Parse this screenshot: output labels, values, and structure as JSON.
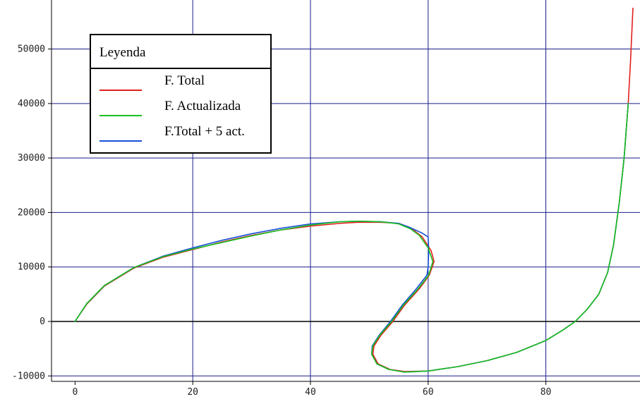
{
  "chart_data": {
    "type": "line",
    "title": "",
    "xlabel": "",
    "ylabel": "",
    "xlim": [
      -4,
      96
    ],
    "ylim": [
      -11000,
      59000
    ],
    "x_ticks": [
      0,
      20,
      40,
      60,
      80
    ],
    "x_tick_labels": [
      "0",
      "20",
      "40",
      "60",
      "80"
    ],
    "y_ticks": [
      -10000,
      0,
      10000,
      20000,
      30000,
      40000,
      50000
    ],
    "y_tick_labels": [
      "-10000",
      "0",
      "10000",
      "20000",
      "30000",
      "40000",
      "50000"
    ],
    "grid": true,
    "zero_line": true,
    "legend": {
      "title": "Leyenda",
      "placement": "top-left"
    },
    "series": [
      {
        "name": "F. Total",
        "color": "#e0201c",
        "points": [
          [
            0,
            0
          ],
          [
            2,
            3200
          ],
          [
            5,
            6500
          ],
          [
            10,
            9800
          ],
          [
            15,
            11800
          ],
          [
            20,
            13200
          ],
          [
            25,
            14600
          ],
          [
            30,
            15800
          ],
          [
            35,
            16800
          ],
          [
            40,
            17500
          ],
          [
            45,
            18000
          ],
          [
            48,
            18200
          ],
          [
            52,
            18200
          ],
          [
            55,
            18000
          ],
          [
            57,
            17200
          ],
          [
            59,
            15500
          ],
          [
            60.5,
            13000
          ],
          [
            61,
            11000
          ],
          [
            60.2,
            8500
          ],
          [
            58.5,
            6000
          ],
          [
            56,
            3000
          ],
          [
            54,
            0
          ],
          [
            52,
            -2500
          ],
          [
            50.8,
            -4500
          ],
          [
            50.6,
            -6000
          ],
          [
            51.5,
            -7800
          ],
          [
            53.5,
            -8800
          ],
          [
            56,
            -9200
          ],
          [
            60,
            -9100
          ],
          [
            65,
            -8300
          ],
          [
            70,
            -7200
          ],
          [
            75,
            -5700
          ],
          [
            80,
            -3500
          ],
          [
            83,
            -1500
          ],
          [
            85,
            0
          ],
          [
            87,
            2200
          ],
          [
            89,
            5000
          ],
          [
            90.5,
            9000
          ],
          [
            91.5,
            14000
          ],
          [
            92.5,
            22000
          ],
          [
            93.3,
            30000
          ],
          [
            94,
            40000
          ],
          [
            94.4,
            48000
          ],
          [
            94.8,
            57500
          ]
        ]
      },
      {
        "name": "F. Actualizada",
        "color": "#18c020",
        "points": [
          [
            0,
            0
          ],
          [
            2,
            3300
          ],
          [
            5,
            6600
          ],
          [
            10,
            9900
          ],
          [
            15,
            11900
          ],
          [
            20,
            13300
          ],
          [
            25,
            14500
          ],
          [
            30,
            15700
          ],
          [
            35,
            16800
          ],
          [
            40,
            17700
          ],
          [
            45,
            18300
          ],
          [
            48,
            18400
          ],
          [
            52,
            18300
          ],
          [
            55,
            17900
          ],
          [
            57,
            17000
          ],
          [
            58.5,
            15800
          ],
          [
            60,
            13500
          ],
          [
            60.8,
            11000
          ],
          [
            60.1,
            8500
          ],
          [
            58.3,
            6000
          ],
          [
            55.8,
            3000
          ],
          [
            53.8,
            0
          ],
          [
            51.8,
            -2500
          ],
          [
            50.6,
            -4500
          ],
          [
            50.4,
            -6000
          ],
          [
            51.3,
            -7800
          ],
          [
            53.3,
            -8800
          ],
          [
            56,
            -9300
          ],
          [
            60,
            -9100
          ],
          [
            65,
            -8300
          ],
          [
            70,
            -7200
          ],
          [
            75,
            -5700
          ],
          [
            80,
            -3500
          ],
          [
            83,
            -1500
          ],
          [
            85,
            0
          ],
          [
            87,
            2200
          ],
          [
            89,
            5000
          ],
          [
            90.5,
            9000
          ],
          [
            91.5,
            14000
          ],
          [
            92.5,
            22000
          ],
          [
            93.3,
            30000
          ],
          [
            94,
            40000
          ]
        ]
      },
      {
        "name": "F.Total + 5 act.",
        "color": "#1850d8",
        "points": [
          [
            0,
            0
          ],
          [
            2,
            3300
          ],
          [
            5,
            6600
          ],
          [
            10,
            9900
          ],
          [
            15,
            12000
          ],
          [
            20,
            13500
          ],
          [
            25,
            14900
          ],
          [
            30,
            16100
          ],
          [
            35,
            17100
          ],
          [
            40,
            17900
          ],
          [
            45,
            18300
          ],
          [
            48,
            18400
          ],
          [
            52,
            18300
          ],
          [
            55,
            18000
          ],
          [
            57,
            17200
          ],
          [
            59,
            16200
          ],
          [
            60,
            15500
          ],
          [
            60.1,
            13000
          ],
          [
            60,
            10000
          ],
          [
            59.8,
            8500
          ],
          [
            58,
            6000
          ],
          [
            55.6,
            3000
          ],
          [
            53.6,
            0
          ],
          [
            51.7,
            -2500
          ],
          [
            50.5,
            -4500
          ],
          [
            50.4,
            -6000
          ],
          [
            51.3,
            -7800
          ],
          [
            53.3,
            -8800
          ],
          [
            56,
            -9300
          ],
          [
            60,
            -9100
          ],
          [
            65,
            -8300
          ],
          [
            70,
            -7200
          ],
          [
            75,
            -5700
          ],
          [
            80,
            -3500
          ],
          [
            83,
            -1500
          ],
          [
            85,
            0
          ],
          [
            87,
            2200
          ],
          [
            89,
            5000
          ],
          [
            90.5,
            9000
          ],
          [
            91.5,
            14000
          ],
          [
            92.5,
            22000
          ],
          [
            93.3,
            30000
          ],
          [
            94,
            40000
          ]
        ]
      }
    ]
  }
}
